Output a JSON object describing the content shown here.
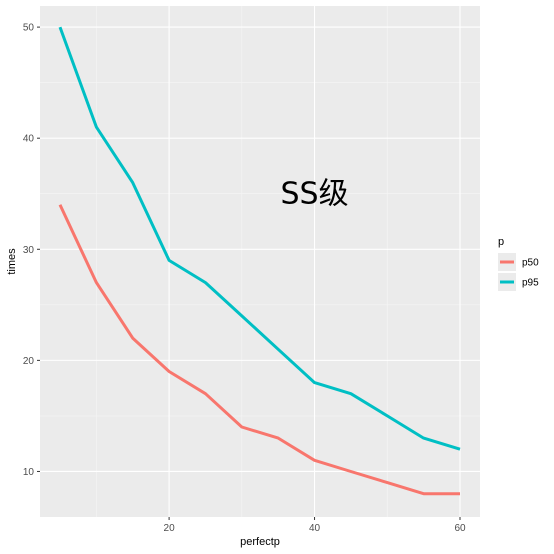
{
  "chart_data": {
    "type": "line",
    "xlabel": "perfectp",
    "ylabel": "times",
    "xlim": [
      2.25,
      62.75
    ],
    "ylim": [
      5.9,
      51.9
    ],
    "x_ticks": [
      20,
      40,
      60
    ],
    "x_minor_ticks": [
      10,
      30,
      50
    ],
    "y_ticks": [
      10,
      20,
      30,
      40,
      50
    ],
    "y_minor_ticks": [
      15,
      25,
      35,
      45
    ],
    "x_tick_labels": [
      "20",
      "40",
      "60"
    ],
    "y_tick_labels": [
      "10",
      "20",
      "30",
      "40",
      "50"
    ],
    "grid": true,
    "legend": {
      "title": "p",
      "placement": "right"
    },
    "annotation": {
      "text": "SS级",
      "x": 40,
      "y": 35
    },
    "series": [
      {
        "name": "p50",
        "color": "#F8766D",
        "x": [
          5,
          10,
          15,
          20,
          25,
          30,
          35,
          40,
          45,
          50,
          55,
          60
        ],
        "values": [
          34,
          27,
          22,
          19,
          17,
          14,
          13,
          11,
          10,
          9,
          8,
          8
        ]
      },
      {
        "name": "p95",
        "color": "#00BFC4",
        "x": [
          5,
          10,
          15,
          20,
          25,
          30,
          35,
          40,
          45,
          50,
          55,
          60
        ],
        "values": [
          50,
          41,
          36,
          29,
          27,
          24,
          21,
          18,
          17,
          15,
          13,
          12
        ]
      }
    ],
    "colors": {
      "panel": "#EBEBEB",
      "grid_major": "#FFFFFF",
      "grid_minor": "#F5F5F5"
    }
  }
}
